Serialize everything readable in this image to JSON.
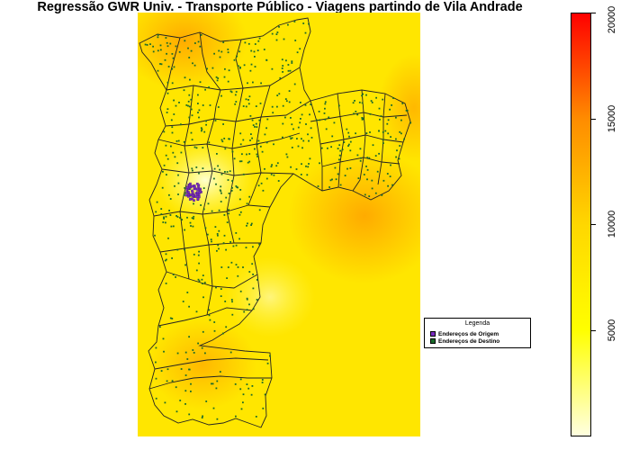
{
  "title": "Regressão GWR Univ. - Transporte Público - Viagens partindo de Vila Andrade",
  "legend": {
    "title": "Legenda",
    "items": [
      {
        "label": "Endereços de Origem",
        "color": "#7a2bbf"
      },
      {
        "label": "Endereços de Destino",
        "color": "#1a6b2a"
      }
    ]
  },
  "colorbar": {
    "min": 0,
    "max": 20000,
    "ticks": [
      "5000",
      "10000",
      "15000",
      "20000"
    ],
    "colors": [
      "#ffffe0",
      "#ffff00",
      "#ffd700",
      "#ff8c00",
      "#ff0000"
    ]
  },
  "map": {
    "surface_base_color": "#ffe600",
    "hotspot_color": "#ffa800",
    "lowspot_color": "#fffca0",
    "boundary_color": "#222222",
    "origin_color": "#7a2bbf",
    "destination_color": "#1a6b2a"
  }
}
